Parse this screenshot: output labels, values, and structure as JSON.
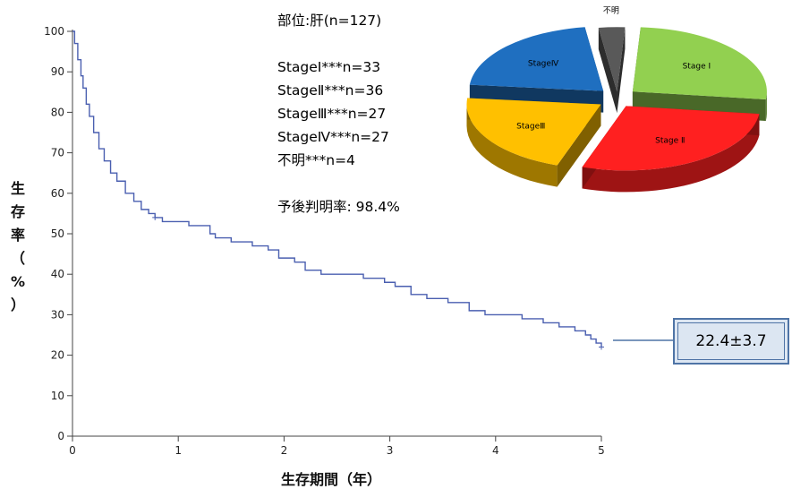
{
  "chart_data": [
    {
      "type": "line",
      "xlabel": "生存期間（年）",
      "ylabel": "生存率（%）",
      "xlim": [
        0,
        5
      ],
      "ylim": [
        0,
        100
      ],
      "x_ticks": [
        "0",
        "1",
        "2",
        "3",
        "4",
        "5"
      ],
      "y_ticks": [
        "0",
        "10",
        "20",
        "30",
        "40",
        "50",
        "60",
        "70",
        "80",
        "90",
        "100"
      ],
      "line_color": "#4a5fb0",
      "step": true,
      "grid": false,
      "x": [
        0,
        0.02,
        0.05,
        0.08,
        0.1,
        0.13,
        0.16,
        0.2,
        0.25,
        0.3,
        0.36,
        0.42,
        0.5,
        0.58,
        0.65,
        0.72,
        0.78,
        0.85,
        0.95,
        1.1,
        1.3,
        1.35,
        1.5,
        1.7,
        1.85,
        1.95,
        2.1,
        2.2,
        2.35,
        2.55,
        2.75,
        2.95,
        3.05,
        3.2,
        3.35,
        3.55,
        3.75,
        3.9,
        4.05,
        4.25,
        4.45,
        4.6,
        4.75,
        4.85,
        4.9,
        4.95,
        5.0
      ],
      "y": [
        100,
        97,
        93,
        89,
        86,
        82,
        79,
        75,
        71,
        68,
        65,
        63,
        60,
        58,
        56,
        55,
        54,
        53,
        53,
        52,
        50,
        49,
        48,
        47,
        46,
        44,
        43,
        41,
        40,
        40,
        39,
        38,
        37,
        35,
        34,
        33,
        31,
        30,
        30,
        29,
        28,
        27,
        26,
        25,
        24,
        23,
        22
      ]
    },
    {
      "type": "pie",
      "style": "3d-exploded",
      "categories": [
        "StageⅠ",
        "StageⅡ",
        "StageⅢ",
        "StageⅣ",
        "不明"
      ],
      "values": [
        33,
        36,
        27,
        27,
        4
      ],
      "colors": [
        "#92d050",
        "#ff2020",
        "#ffc000",
        "#1f6fc0",
        "#595959"
      ],
      "labels": [
        "Stage Ⅰ",
        "Stage Ⅱ",
        "StageⅢ",
        "StageⅣ",
        "不明"
      ]
    }
  ],
  "info": {
    "site": "部位:肝(n=127)",
    "stage1": "StageⅠ***n=33",
    "stage2": "StageⅡ***n=36",
    "stage3": "StageⅢ***n=27",
    "stage4": "StageⅣ***n=27",
    "unknown": "不明***n=4",
    "rate": "予後判明率: 98.4%"
  },
  "callout": {
    "text": "22.4±3.7"
  }
}
